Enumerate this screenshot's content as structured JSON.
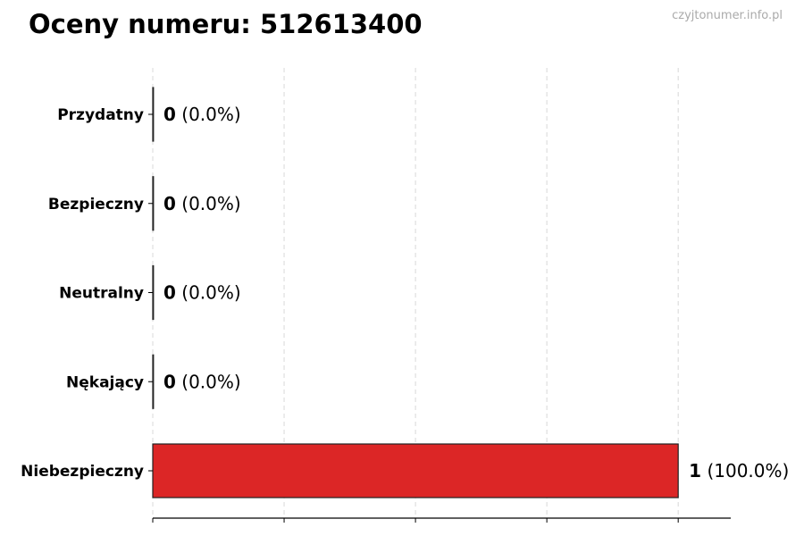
{
  "chart_data": {
    "type": "bar",
    "orientation": "horizontal",
    "title": "Oceny numeru: 512613400",
    "watermark": "czyjtonumer.info.pl",
    "categories": [
      "Przydatny",
      "Bezpieczny",
      "Neutralny",
      "Nękający",
      "Niebezpieczny"
    ],
    "values": [
      0,
      0,
      0,
      0,
      1
    ],
    "labels": [
      "(0.0%)",
      "(0.0%)",
      "(0.0%)",
      "(0.0%)",
      "(100.0%)"
    ],
    "xlim": [
      0,
      1.1
    ],
    "xticks": [
      0,
      0.25,
      0.5,
      0.75,
      1.0
    ],
    "grid": "x, dashed",
    "colors": {
      "bar": "#dc2626",
      "edge": "#222222"
    }
  }
}
